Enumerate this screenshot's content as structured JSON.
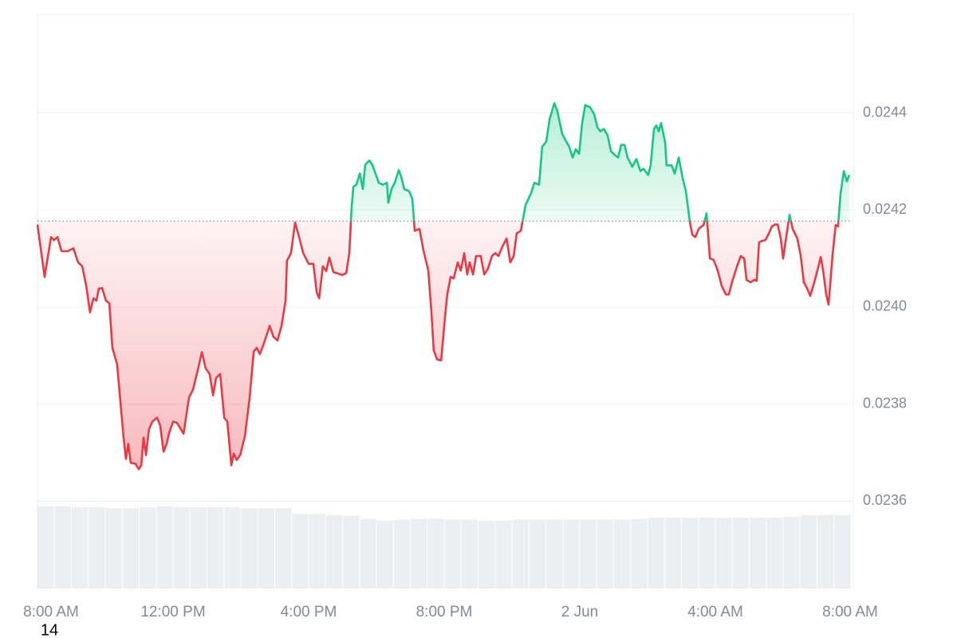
{
  "chart_data": {
    "type": "line",
    "x": [
      0,
      0.21,
      0.4,
      0.49,
      0.59,
      0.71,
      0.89,
      1.06,
      1.2,
      1.32,
      1.44,
      1.55,
      1.65,
      1.74,
      1.81,
      1.91,
      2.02,
      2.12,
      2.21,
      2.35,
      2.54,
      2.61,
      2.68,
      2.75,
      2.89,
      2.99,
      3.06,
      3.13,
      3.2,
      3.29,
      3.39,
      3.53,
      3.62,
      3.72,
      3.81,
      3.88,
      4.0,
      4.12,
      4.31,
      4.47,
      4.59,
      4.73,
      4.85,
      4.96,
      5.08,
      5.18,
      5.27,
      5.39,
      5.51,
      5.6,
      5.72,
      5.79,
      5.88,
      5.98,
      6.12,
      6.26,
      6.38,
      6.47,
      6.56,
      6.68,
      6.85,
      6.96,
      7.08,
      7.2,
      7.32,
      7.36,
      7.48,
      7.6,
      7.72,
      7.84,
      8.0,
      8.14,
      8.24,
      8.31,
      8.42,
      8.52,
      8.61,
      8.73,
      8.87,
      8.99,
      9.11,
      9.2,
      9.27,
      9.32,
      9.41,
      9.51,
      9.6,
      9.67,
      9.79,
      9.88,
      10.07,
      10.19,
      10.31,
      10.35,
      10.45,
      10.54,
      10.66,
      10.73,
      10.82,
      10.96,
      11.06,
      11.13,
      11.27,
      11.39,
      11.53,
      11.62,
      11.69,
      11.79,
      11.91,
      12.0,
      12.09,
      12.19,
      12.28,
      12.4,
      12.49,
      12.59,
      12.68,
      12.75,
      12.85,
      12.94,
      13.08,
      13.18,
      13.29,
      13.41,
      13.51,
      13.6,
      13.72,
      13.84,
      13.95,
      14.05,
      14.14,
      14.26,
      14.4,
      14.56,
      14.66,
      14.8,
      14.89,
      15.01,
      15.11,
      15.25,
      15.34,
      15.48,
      15.6,
      15.69,
      15.79,
      15.88,
      15.98,
      16.07,
      16.16,
      16.31,
      16.42,
      16.52,
      16.61,
      16.71,
      16.82,
      16.92,
      17.04,
      17.13,
      17.22,
      17.32,
      17.41,
      17.55,
      17.67,
      17.79,
      17.88,
      18.02,
      18.09,
      18.19,
      18.26,
      18.33,
      18.4,
      18.52,
      18.56,
      18.71,
      18.8,
      18.92,
      19.04,
      19.13,
      19.25,
      19.32,
      19.41,
      19.51,
      19.65,
      19.74,
      19.84,
      19.95,
      20.07,
      20.19,
      20.31,
      20.4,
      20.49,
      20.64,
      20.75,
      20.85,
      20.92,
      21.04,
      21.15,
      21.22,
      21.29,
      21.36,
      21.48,
      21.58,
      21.67,
      21.76,
      21.84,
      21.93,
      22.0,
      22.09,
      22.19,
      22.28,
      22.42,
      22.52,
      22.61,
      22.71,
      22.8,
      22.92,
      23.01,
      23.11,
      23.18,
      23.27,
      23.34,
      23.46,
      23.55,
      23.62,
      23.69,
      23.79,
      23.88,
      23.95
    ],
    "values": [
      0.02417,
      0.024062,
      0.024144,
      0.024138,
      0.024144,
      0.024115,
      0.024115,
      0.024121,
      0.024092,
      0.024084,
      0.024043,
      0.023989,
      0.024018,
      0.024013,
      0.024038,
      0.024039,
      0.024013,
      0.024008,
      0.023916,
      0.023882,
      0.023731,
      0.023687,
      0.023718,
      0.023679,
      0.023677,
      0.023666,
      0.023674,
      0.023731,
      0.023695,
      0.023748,
      0.023764,
      0.023772,
      0.023756,
      0.023702,
      0.023718,
      0.023739,
      0.023764,
      0.023761,
      0.023739,
      0.023813,
      0.02383,
      0.02387,
      0.023907,
      0.023874,
      0.023862,
      0.023818,
      0.023854,
      0.023862,
      0.023772,
      0.023764,
      0.023674,
      0.023698,
      0.023685,
      0.023695,
      0.023734,
      0.023813,
      0.023908,
      0.023916,
      0.023903,
      0.023925,
      0.023961,
      0.023939,
      0.023931,
      0.023961,
      0.024013,
      0.024095,
      0.024111,
      0.024174,
      0.024144,
      0.024111,
      0.024089,
      0.024089,
      0.02403,
      0.024018,
      0.024084,
      0.024074,
      0.024102,
      0.024072,
      0.024069,
      0.024066,
      0.02407,
      0.024111,
      0.024207,
      0.024248,
      0.024252,
      0.024275,
      0.024243,
      0.024293,
      0.024302,
      0.024293,
      0.024256,
      0.024252,
      0.024256,
      0.024215,
      0.024244,
      0.024256,
      0.024282,
      0.024269,
      0.024243,
      0.024239,
      0.024223,
      0.024157,
      0.024161,
      0.024116,
      0.024075,
      0.023993,
      0.023911,
      0.023892,
      0.02389,
      0.023961,
      0.024026,
      0.024062,
      0.024059,
      0.024092,
      0.024075,
      0.024111,
      0.024067,
      0.024092,
      0.024067,
      0.024105,
      0.024105,
      0.024067,
      0.024079,
      0.024105,
      0.024111,
      0.024105,
      0.024125,
      0.024141,
      0.024092,
      0.024105,
      0.024152,
      0.024157,
      0.02421,
      0.024234,
      0.024256,
      0.024252,
      0.02433,
      0.024341,
      0.024387,
      0.02442,
      0.024403,
      0.024357,
      0.024341,
      0.02433,
      0.024308,
      0.024325,
      0.024316,
      0.024379,
      0.024416,
      0.024411,
      0.024398,
      0.02437,
      0.024362,
      0.024367,
      0.024354,
      0.024321,
      0.024313,
      0.024308,
      0.024334,
      0.024334,
      0.024308,
      0.024289,
      0.024305,
      0.02428,
      0.024285,
      0.024272,
      0.024292,
      0.024367,
      0.024374,
      0.024362,
      0.024379,
      0.024338,
      0.024292,
      0.024292,
      0.024275,
      0.024308,
      0.024264,
      0.024239,
      0.024174,
      0.024149,
      0.024144,
      0.024161,
      0.024169,
      0.024193,
      0.0241,
      0.024097,
      0.024075,
      0.024043,
      0.024026,
      0.024026,
      0.024051,
      0.024084,
      0.024105,
      0.0241,
      0.024056,
      0.024051,
      0.024056,
      0.024054,
      0.024133,
      0.024136,
      0.024138,
      0.024152,
      0.024166,
      0.02417,
      0.02417,
      0.024141,
      0.0241,
      0.024144,
      0.02419,
      0.024161,
      0.024141,
      0.024105,
      0.024051,
      0.024038,
      0.024023,
      0.024051,
      0.024075,
      0.024103,
      0.024075,
      0.024026,
      0.024005,
      0.024108,
      0.024169,
      0.024166,
      0.024231,
      0.02428,
      0.024259,
      0.024272
    ],
    "reference_value": 0.024177,
    "up_color": "#16c784",
    "down_color": "#ea3943",
    "xlim": [
      0,
      24
    ],
    "xticks": [
      {
        "value": 0,
        "label": "8:00 AM"
      },
      {
        "value": 4,
        "label": "12:00 PM"
      },
      {
        "value": 8,
        "label": "4:00 PM"
      },
      {
        "value": 12,
        "label": "8:00 PM"
      },
      {
        "value": 16,
        "label": "2 Jun"
      },
      {
        "value": 20,
        "label": "4:00 AM"
      },
      {
        "value": 24,
        "label": "8:00 AM"
      }
    ],
    "x_date_label": "14",
    "ylim": [
      0.02342,
      0.024603
    ],
    "yticks": [
      0.0236,
      0.0238,
      {
        "value": 0.024,
        "label": "0.0240"
      },
      0.0242,
      0.0244
    ],
    "grid": true,
    "volume": {
      "color": "#eceef2",
      "ylim": [
        0,
        100
      ],
      "values": [
        86,
        86,
        85,
        85,
        84,
        84,
        85,
        86,
        85,
        85,
        85,
        85,
        84,
        84,
        84,
        78,
        78,
        77,
        76,
        73,
        71,
        72,
        73,
        73,
        72,
        72,
        71,
        71,
        72,
        72,
        72,
        72,
        72,
        72,
        72,
        73,
        74,
        74,
        74,
        74,
        74,
        74,
        74,
        74,
        75,
        77,
        77,
        77
      ]
    }
  }
}
